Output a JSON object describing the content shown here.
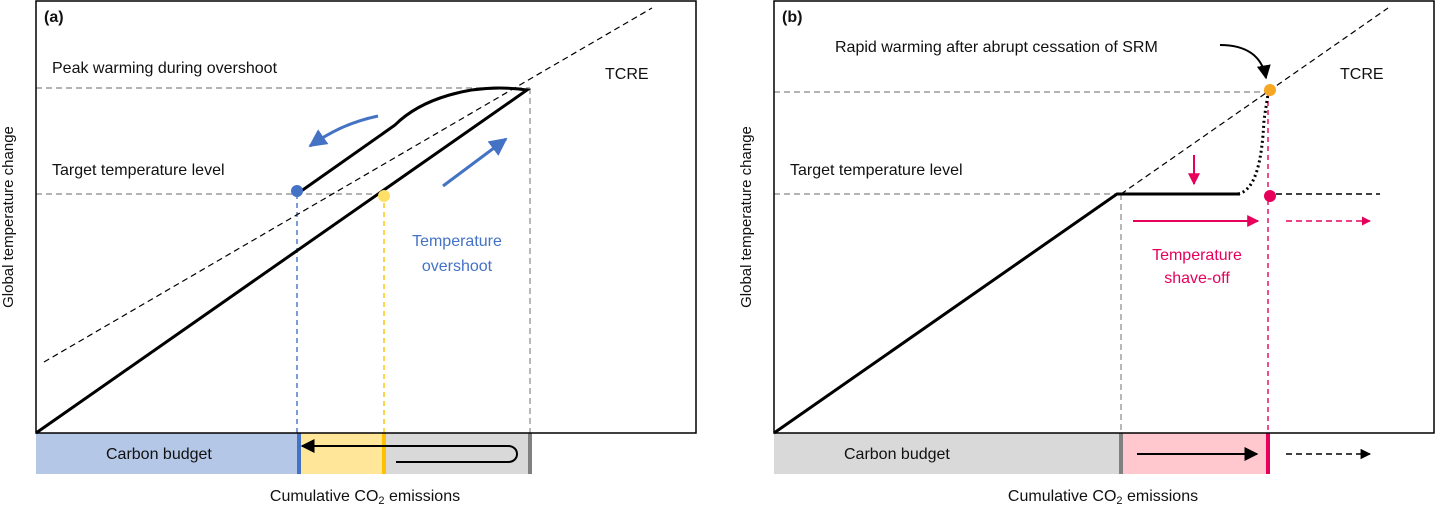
{
  "panel_a": {
    "label": "(a)",
    "peak_label": "Peak warming during overshoot",
    "target_label": "Target temperature level",
    "tcre_label": "TCRE",
    "overshoot_label_line1": "Temperature",
    "overshoot_label_line2": "overshoot",
    "budget_label": "Carbon budget",
    "ylabel": "Global temperature change",
    "xlabel_prefix": "Cumulative CO",
    "xlabel_sub": "2",
    "xlabel_suffix": " emissions"
  },
  "panel_b": {
    "label": "(b)",
    "srm_label": "Rapid warming after abrupt cessation of SRM",
    "target_label": "Target temperature level",
    "tcre_label": "TCRE",
    "shave_label_line1": "Temperature",
    "shave_label_line2": "shave-off",
    "budget_label": "Carbon budget",
    "ylabel": "Global temperature change",
    "xlabel_prefix": "Cumulative CO",
    "xlabel_sub": "2",
    "xlabel_suffix": " emissions"
  },
  "colors": {
    "blue": "#4472c4",
    "blue_fill": "#b4c7e7",
    "yellow": "#ffc000",
    "yellow_fill": "#ffe699",
    "gray_fill": "#d9d9d9",
    "pink": "#e6005c",
    "pink_fill": "#ffc7ce",
    "orange": "#f5a623"
  }
}
